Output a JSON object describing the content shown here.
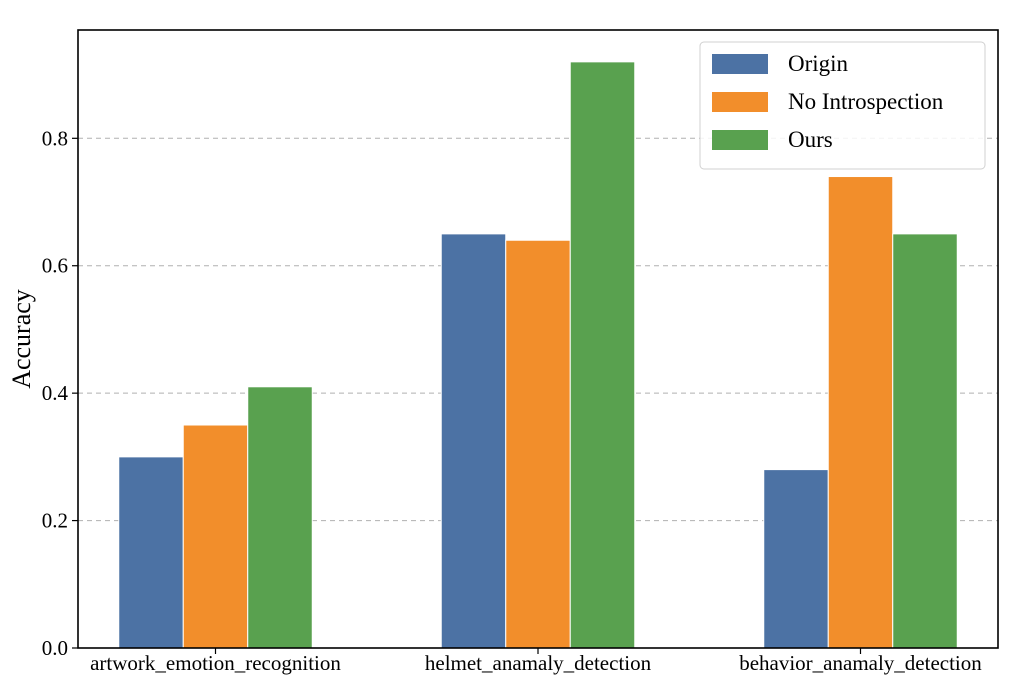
{
  "chart_data": {
    "type": "bar",
    "categories": [
      "artwork_emotion_recognition",
      "helmet_anamaly_detection",
      "behavior_anamaly_detection"
    ],
    "series": [
      {
        "name": "Origin",
        "color": "#4c72a4",
        "values": [
          0.3,
          0.65,
          0.28
        ]
      },
      {
        "name": "No Introspection",
        "color": "#f28e2b",
        "values": [
          0.35,
          0.64,
          0.74
        ]
      },
      {
        "name": "Ours",
        "color": "#59a14f",
        "values": [
          0.41,
          0.92,
          0.65
        ]
      }
    ],
    "title": "",
    "xlabel": "",
    "ylabel": "Accuracy",
    "ylim": [
      0,
      0.97
    ],
    "yticks": [
      0.0,
      0.2,
      0.4,
      0.6,
      0.8
    ],
    "ytick_labels": [
      "0.0",
      "0.2",
      "0.4",
      "0.6",
      "0.8"
    ],
    "grid": "horizontal dashed",
    "legend_position": "top-right"
  }
}
